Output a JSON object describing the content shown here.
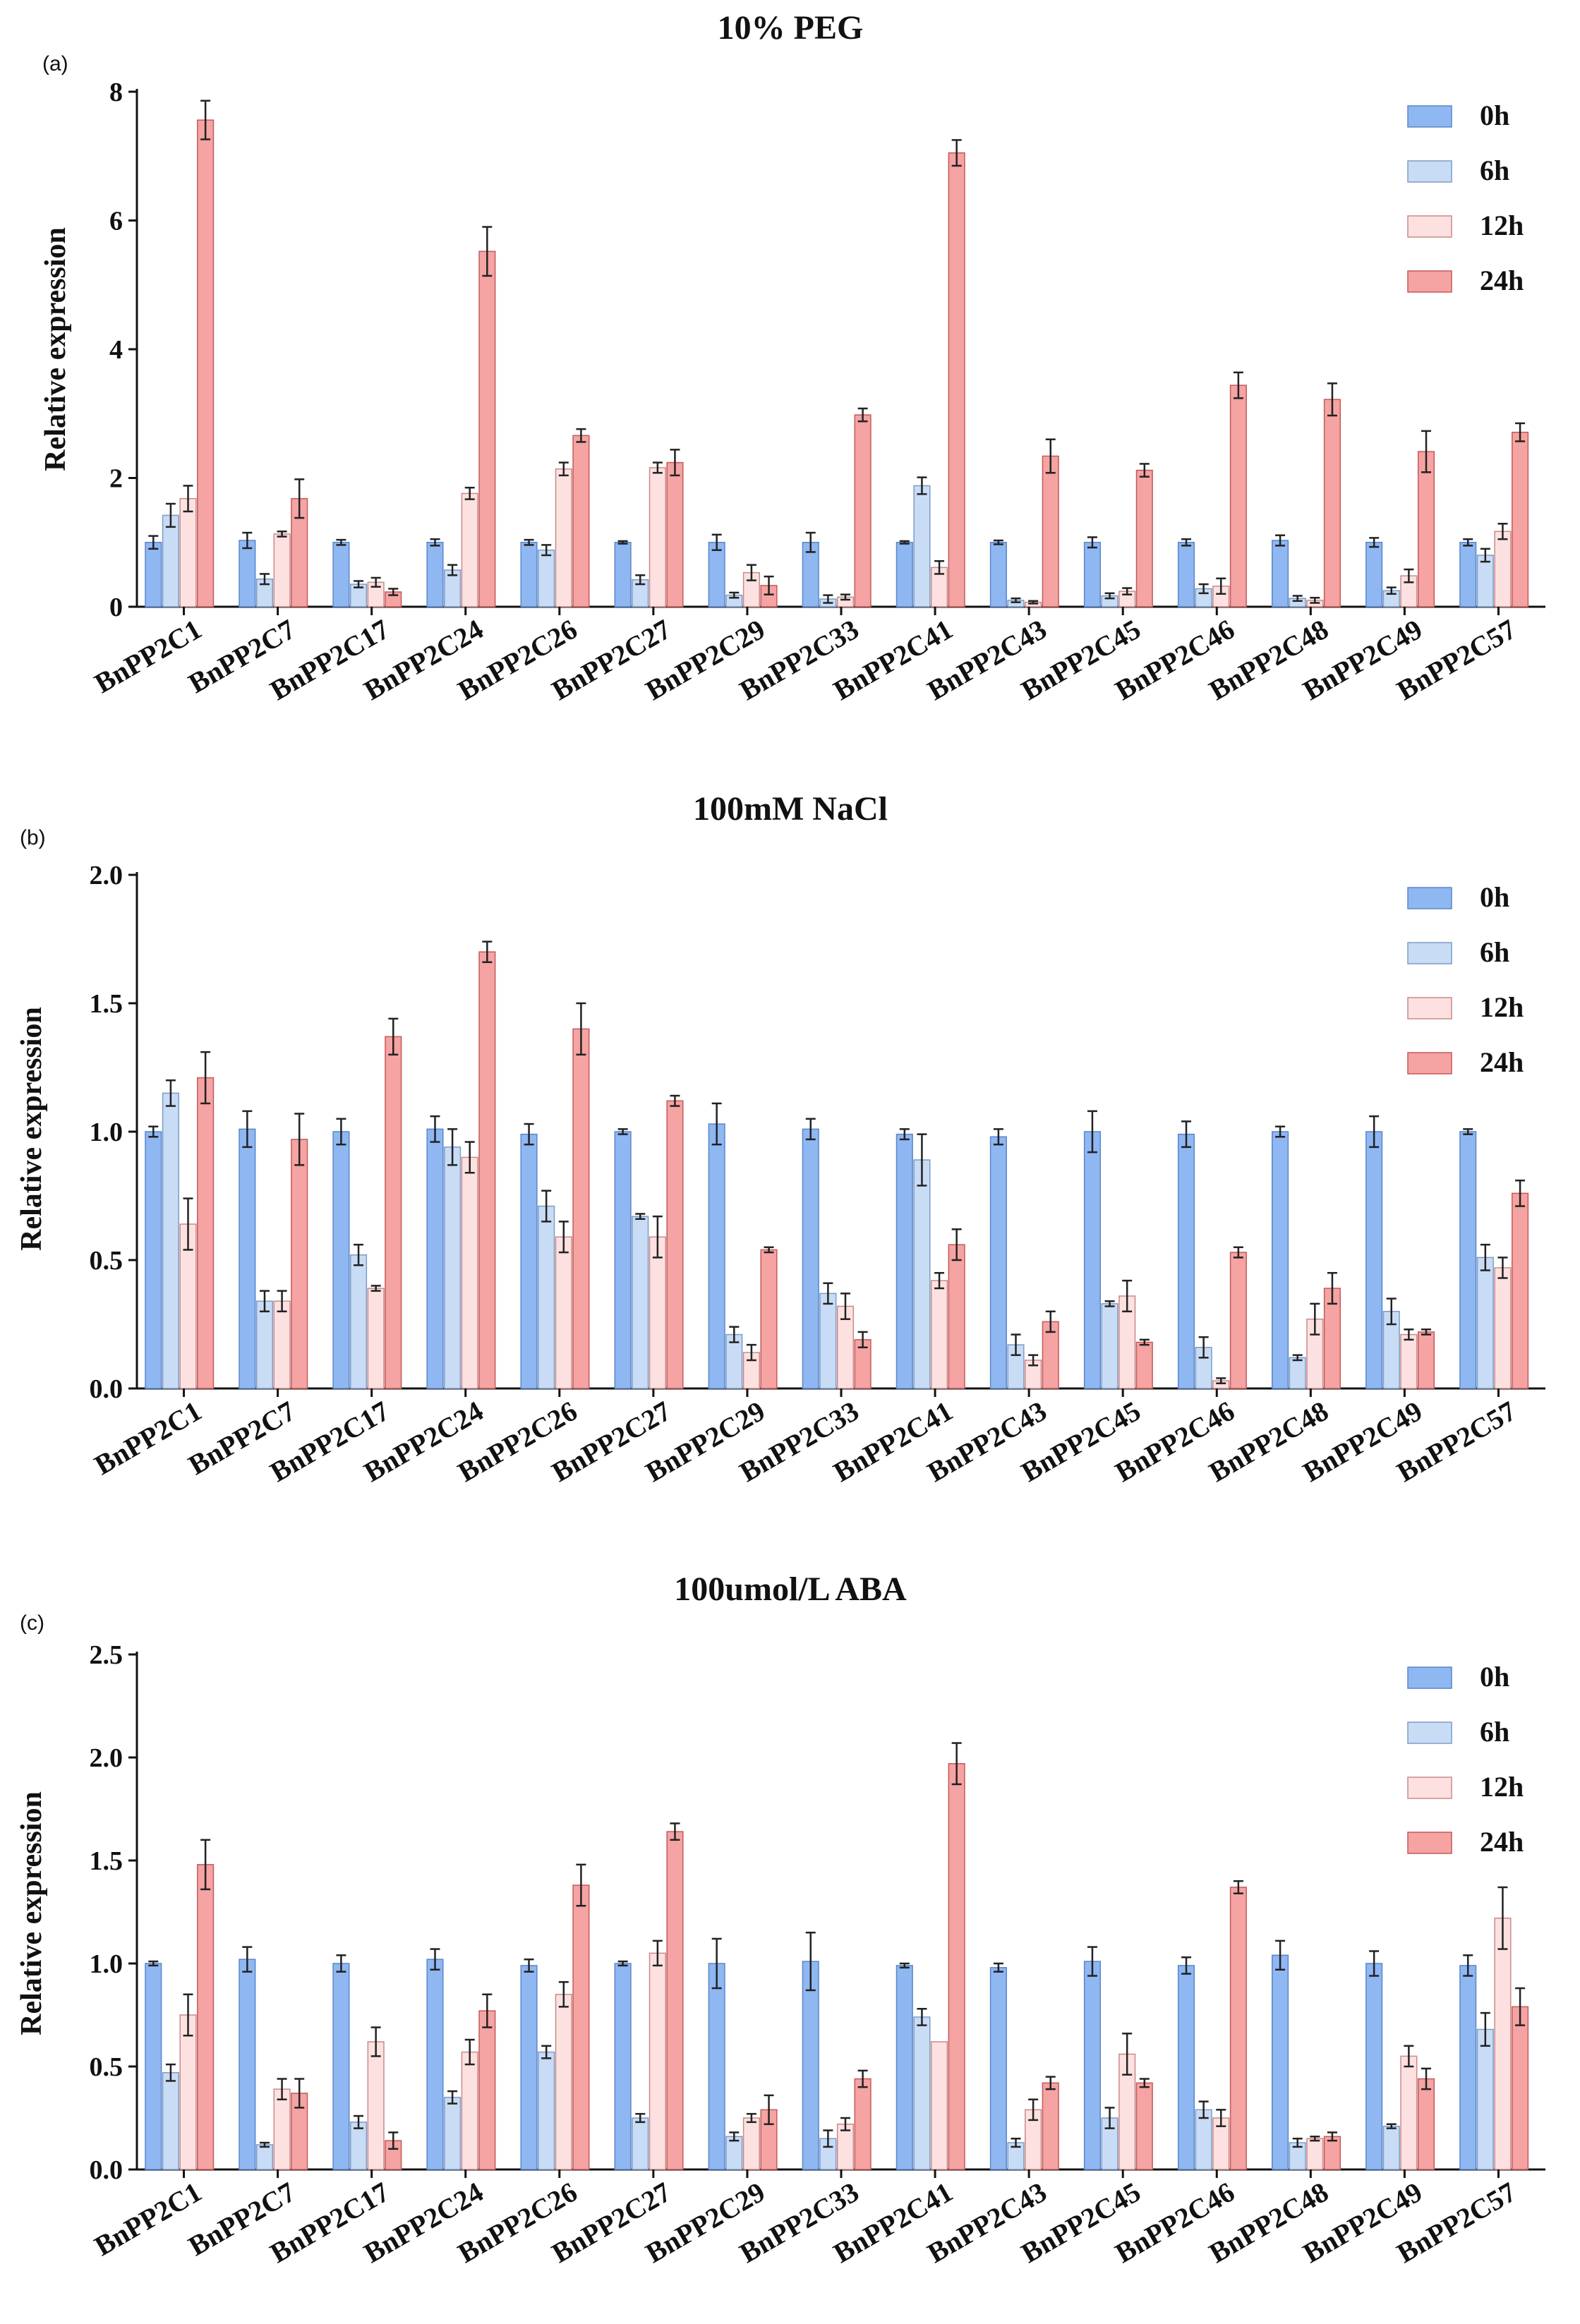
{
  "chart_data": [
    {
      "type": "bar",
      "panel_label": "(a)",
      "title": "10% PEG",
      "xlabel": "",
      "ylabel": "Relative expression",
      "ylim": [
        0,
        8
      ],
      "yticks": [
        "0",
        "2",
        "4",
        "6",
        "8"
      ],
      "legend_position": "top-right",
      "categories": [
        "BnPP2C1",
        "BnPP2C7",
        "BnPP2C17",
        "BnPP2C24",
        "BnPP2C26",
        "BnPP2C27",
        "BnPP2C29",
        "BnPP2C33",
        "BnPP2C41",
        "BnPP2C43",
        "BnPP2C45",
        "BnPP2C46",
        "BnPP2C48",
        "BnPP2C49",
        "BnPP2C57"
      ],
      "series": [
        {
          "name": "0h",
          "color": "#8fb7f2",
          "stroke": "#5b86c9",
          "values": [
            1.0,
            1.03,
            1.0,
            1.0,
            1.0,
            1.0,
            1.0,
            1.0,
            1.0,
            1.0,
            1.0,
            1.0,
            1.03,
            1.0,
            1.0
          ],
          "errors": [
            0.1,
            0.12,
            0.04,
            0.05,
            0.04,
            0.02,
            0.12,
            0.15,
            0.02,
            0.03,
            0.08,
            0.05,
            0.08,
            0.07,
            0.05
          ]
        },
        {
          "name": "6h",
          "color": "#c9dcf5",
          "stroke": "#7d9cc7",
          "values": [
            1.42,
            0.43,
            0.35,
            0.57,
            0.88,
            0.42,
            0.18,
            0.12,
            1.88,
            0.1,
            0.17,
            0.28,
            0.13,
            0.25,
            0.8
          ],
          "errors": [
            0.18,
            0.08,
            0.05,
            0.08,
            0.08,
            0.07,
            0.04,
            0.06,
            0.13,
            0.03,
            0.04,
            0.07,
            0.04,
            0.05,
            0.1
          ]
        },
        {
          "name": "12h",
          "color": "#fde1e1",
          "stroke": "#c98a8a",
          "values": [
            1.68,
            1.13,
            0.38,
            1.76,
            2.14,
            2.16,
            0.53,
            0.15,
            0.61,
            0.07,
            0.24,
            0.32,
            0.1,
            0.48,
            1.17
          ]
        },
        {
          "name": "24h",
          "color": "#f5a3a3",
          "stroke": "#c45a5a",
          "values": [
            7.56,
            1.68,
            0.23,
            5.52,
            2.66,
            2.24,
            0.33,
            2.98,
            7.05,
            2.34,
            2.12,
            3.44,
            3.22,
            2.41,
            2.71
          ]
        }
      ],
      "errors_12h": [
        0.2,
        0.04,
        0.07,
        0.09,
        0.1,
        0.08,
        0.12,
        0.04,
        0.1,
        0.02,
        0.05,
        0.12,
        0.04,
        0.1,
        0.12
      ],
      "errors_24h": [
        0.3,
        0.3,
        0.05,
        0.38,
        0.1,
        0.2,
        0.14,
        0.1,
        0.2,
        0.26,
        0.1,
        0.2,
        0.25,
        0.32,
        0.14
      ]
    },
    {
      "type": "bar",
      "panel_label": "(b)",
      "title": "100mM NaCl",
      "xlabel": "",
      "ylabel": "Relative expression",
      "ylim": [
        0,
        2
      ],
      "yticks": [
        "0.0",
        "0.5",
        "1.0",
        "1.5",
        "2.0"
      ],
      "legend_position": "top-right",
      "categories": [
        "BnPP2C1",
        "BnPP2C7",
        "BnPP2C17",
        "BnPP2C24",
        "BnPP2C26",
        "BnPP2C27",
        "BnPP2C29",
        "BnPP2C33",
        "BnPP2C41",
        "BnPP2C43",
        "BnPP2C45",
        "BnPP2C46",
        "BnPP2C48",
        "BnPP2C49",
        "BnPP2C57"
      ],
      "series": [
        {
          "name": "0h",
          "color": "#8fb7f2",
          "stroke": "#5b86c9",
          "values": [
            1.0,
            1.01,
            1.0,
            1.01,
            0.99,
            1.0,
            1.03,
            1.01,
            0.99,
            0.98,
            1.0,
            0.99,
            1.0,
            1.0,
            1.0
          ],
          "errors": [
            0.02,
            0.07,
            0.05,
            0.05,
            0.04,
            0.01,
            0.08,
            0.04,
            0.02,
            0.03,
            0.08,
            0.05,
            0.02,
            0.06,
            0.01
          ]
        },
        {
          "name": "6h",
          "color": "#c9dcf5",
          "stroke": "#7d9cc7",
          "values": [
            1.15,
            0.34,
            0.52,
            0.94,
            0.71,
            0.67,
            0.21,
            0.37,
            0.89,
            0.17,
            0.33,
            0.16,
            0.12,
            0.3,
            0.51
          ],
          "errors": [
            0.05,
            0.04,
            0.04,
            0.07,
            0.06,
            0.01,
            0.03,
            0.04,
            0.1,
            0.04,
            0.01,
            0.04,
            0.01,
            0.05,
            0.05
          ]
        },
        {
          "name": "12h",
          "color": "#fde1e1",
          "stroke": "#c98a8a",
          "values": [
            0.64,
            0.34,
            0.39,
            0.9,
            0.59,
            0.59,
            0.14,
            0.32,
            0.42,
            0.11,
            0.36,
            0.03,
            0.27,
            0.21,
            0.47
          ]
        },
        {
          "name": "24h",
          "color": "#f5a3a3",
          "stroke": "#c45a5a",
          "values": [
            1.21,
            0.97,
            1.37,
            1.7,
            1.4,
            1.12,
            0.54,
            0.19,
            0.56,
            0.26,
            0.18,
            0.53,
            0.39,
            0.22,
            0.76
          ]
        }
      ],
      "errors_12h": [
        0.1,
        0.04,
        0.01,
        0.06,
        0.06,
        0.08,
        0.03,
        0.05,
        0.03,
        0.02,
        0.06,
        0.01,
        0.06,
        0.02,
        0.04
      ],
      "errors_24h": [
        0.1,
        0.1,
        0.07,
        0.04,
        0.1,
        0.02,
        0.01,
        0.03,
        0.06,
        0.04,
        0.01,
        0.02,
        0.06,
        0.01,
        0.05
      ]
    },
    {
      "type": "bar",
      "panel_label": "(c)",
      "title": "100umol/L ABA",
      "xlabel": "",
      "ylabel": "Relative expression",
      "ylim": [
        0,
        2.5
      ],
      "yticks": [
        "0.0",
        "0.5",
        "1.0",
        "1.5",
        "2.0",
        "2.5"
      ],
      "legend_position": "top-right",
      "categories": [
        "BnPP2C1",
        "BnPP2C7",
        "BnPP2C17",
        "BnPP2C24",
        "BnPP2C26",
        "BnPP2C27",
        "BnPP2C29",
        "BnPP2C33",
        "BnPP2C41",
        "BnPP2C43",
        "BnPP2C45",
        "BnPP2C46",
        "BnPP2C48",
        "BnPP2C49",
        "BnPP2C57"
      ],
      "series": [
        {
          "name": "0h",
          "color": "#8fb7f2",
          "stroke": "#5b86c9",
          "values": [
            1.0,
            1.02,
            1.0,
            1.02,
            0.99,
            1.0,
            1.0,
            1.01,
            0.99,
            0.98,
            1.01,
            0.99,
            1.04,
            1.0,
            0.99
          ],
          "errors": [
            0.01,
            0.06,
            0.04,
            0.05,
            0.03,
            0.01,
            0.12,
            0.14,
            0.01,
            0.02,
            0.07,
            0.04,
            0.07,
            0.06,
            0.05
          ]
        },
        {
          "name": "6h",
          "color": "#c9dcf5",
          "stroke": "#7d9cc7",
          "values": [
            0.47,
            0.12,
            0.23,
            0.35,
            0.57,
            0.25,
            0.16,
            0.15,
            0.74,
            0.13,
            0.25,
            0.29,
            0.13,
            0.21,
            0.68
          ],
          "errors": [
            0.04,
            0.01,
            0.03,
            0.03,
            0.03,
            0.02,
            0.02,
            0.04,
            0.04,
            0.02,
            0.05,
            0.04,
            0.02,
            0.01,
            0.08
          ]
        },
        {
          "name": "12h",
          "color": "#fde1e1",
          "stroke": "#c98a8a",
          "values": [
            0.75,
            0.39,
            0.62,
            0.57,
            0.85,
            1.05,
            0.25,
            0.22,
            0.62,
            0.29,
            0.56,
            0.25,
            0.15,
            0.55,
            1.22
          ]
        },
        {
          "name": "24h",
          "color": "#f5a3a3",
          "stroke": "#c45a5a",
          "values": [
            1.48,
            0.37,
            0.14,
            0.77,
            1.38,
            1.64,
            0.29,
            0.44,
            1.97,
            0.42,
            0.42,
            1.37,
            0.16,
            0.44,
            0.79
          ]
        }
      ],
      "errors_12h": [
        0.1,
        0.05,
        0.07,
        0.06,
        0.06,
        0.06,
        0.02,
        0.03,
        0.0,
        0.05,
        0.1,
        0.04,
        0.01,
        0.05,
        0.15
      ],
      "errors_24h": [
        0.12,
        0.07,
        0.04,
        0.08,
        0.1,
        0.04,
        0.07,
        0.04,
        0.1,
        0.03,
        0.02,
        0.03,
        0.02,
        0.05,
        0.09
      ]
    }
  ]
}
